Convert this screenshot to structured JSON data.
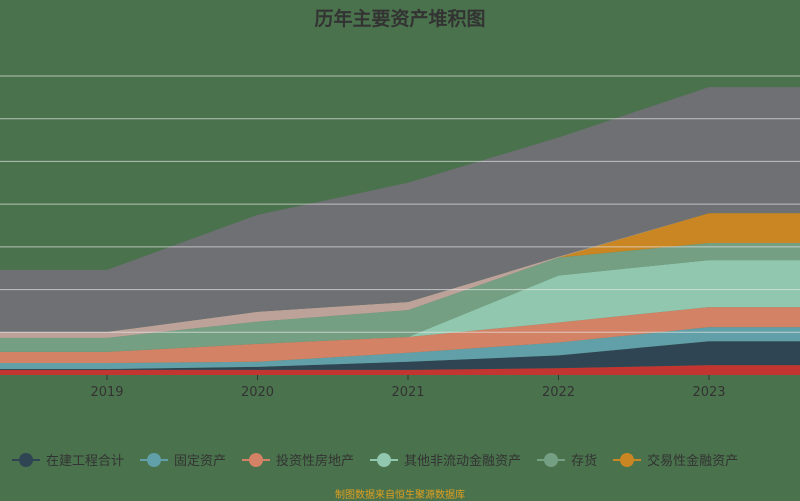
{
  "chart_data": {
    "type": "area",
    "stacked": true,
    "title": "历年主要资产堆积图",
    "categories": [
      "2019",
      "2020",
      "2021",
      "2022",
      "2023"
    ],
    "ylim": [
      0,
      70
    ],
    "grid": true,
    "legend_position": "bottom",
    "series": [
      {
        "values": [
          1.2,
          1.2,
          1.2,
          1.6,
          2.3
        ],
        "color": "#c23531"
      },
      {
        "name": "在建工程合计",
        "values": [
          0.2,
          0.7,
          1.9,
          3.0,
          5.6
        ],
        "color": "#2f4554"
      },
      {
        "name": "固定资产",
        "values": [
          1.4,
          1.2,
          2.1,
          3.0,
          3.3
        ],
        "color": "#61a0a8"
      },
      {
        "name": "投资性房地产",
        "values": [
          2.6,
          4.2,
          3.7,
          4.7,
          4.7
        ],
        "color": "#d48265"
      },
      {
        "name": "其他非流动金融资产",
        "values": [
          0,
          0,
          0,
          11.0,
          11.0
        ],
        "color": "#91c7ae"
      },
      {
        "name": "存货",
        "values": [
          3.3,
          5.2,
          6.3,
          4.2,
          4.0
        ],
        "color": "#749f83"
      },
      {
        "name": "交易性金融资产",
        "values": [
          0,
          0,
          0,
          0,
          7.0
        ],
        "color": "#ca8622"
      },
      {
        "values": [
          1.4,
          2.3,
          1.9,
          0.2,
          0
        ],
        "color": "#bda29a"
      },
      {
        "values": [
          14.5,
          22.7,
          27.9,
          27.9,
          29.5
        ],
        "color": "#6e7074"
      }
    ]
  },
  "footer": "制图数据来自恒生聚源数据库"
}
